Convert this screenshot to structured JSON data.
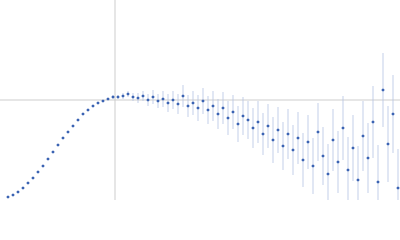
{
  "chart_data": {
    "type": "scatter",
    "color": "#3b63b3",
    "error_color": "#b4c3e4",
    "grid": true,
    "tick_labels": false,
    "grid_color": "#cccccc",
    "xlim": [
      0,
      400
    ],
    "ylim": [
      0,
      200
    ],
    "xticks": [
      115
    ],
    "yticks": [
      100
    ],
    "x": [
      8,
      13,
      18,
      23,
      28,
      33,
      38,
      43,
      48,
      53,
      58,
      63,
      68,
      73,
      78,
      83,
      88,
      93,
      98,
      103,
      108,
      113,
      118,
      123,
      128,
      133,
      138,
      143,
      148,
      153,
      158,
      163,
      168,
      173,
      178,
      183,
      188,
      193,
      198,
      203,
      208,
      213,
      218,
      223,
      228,
      233,
      238,
      243,
      248,
      253,
      258,
      263,
      268,
      273,
      278,
      283,
      288,
      293,
      298,
      303,
      308,
      313,
      318,
      323,
      328,
      333,
      338,
      343,
      348,
      353,
      358,
      363,
      368,
      373,
      378,
      383,
      388,
      393,
      398
    ],
    "values": [
      3,
      5,
      8,
      12,
      17,
      22,
      28,
      34,
      41,
      48,
      55,
      62,
      68,
      74,
      80,
      86,
      90,
      94,
      97,
      99,
      101,
      103,
      103,
      104,
      106,
      103,
      102,
      104,
      100,
      103,
      99,
      101,
      97,
      100,
      96,
      104,
      94,
      97,
      92,
      99,
      90,
      94,
      86,
      92,
      82,
      88,
      76,
      84,
      80,
      72,
      78,
      66,
      74,
      60,
      70,
      54,
      66,
      50,
      62,
      40,
      58,
      34,
      68,
      44,
      26,
      60,
      38,
      72,
      30,
      52,
      20,
      64,
      42,
      78,
      18,
      110,
      56,
      86,
      12
    ],
    "errors": [
      0.5,
      0.5,
      0.5,
      0.5,
      0.5,
      0.5,
      0.5,
      0.5,
      0.5,
      0.5,
      0.5,
      0.5,
      0.5,
      0.5,
      0.5,
      0.5,
      0.5,
      0.5,
      0.5,
      1,
      1,
      2,
      2,
      3,
      3,
      4,
      5,
      5,
      6,
      7,
      7,
      8,
      9,
      9,
      10,
      11,
      11,
      12,
      13,
      13,
      14,
      15,
      15,
      16,
      17,
      17,
      18,
      19,
      19,
      20,
      21,
      21,
      22,
      23,
      23,
      24,
      25,
      25,
      26,
      27,
      27,
      28,
      29,
      29,
      30,
      31,
      31,
      32,
      33,
      33,
      34,
      35,
      35,
      36,
      37,
      37,
      38,
      39,
      39
    ]
  }
}
